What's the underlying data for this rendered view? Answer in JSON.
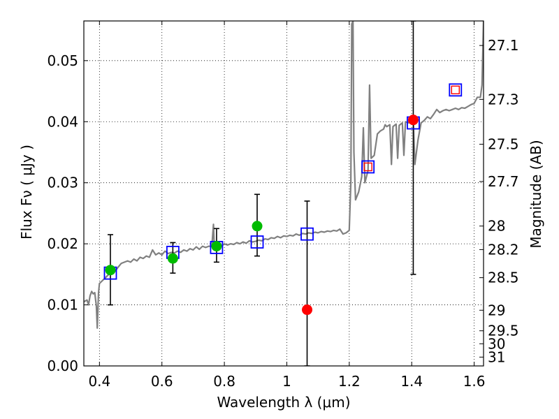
{
  "chart_data": {
    "type": "scatter",
    "title": "",
    "xlabel": "Wavelength  λ (μm)",
    "ylabel": "Flux  Fν  ( μJy )",
    "ylabel_right": "Magnitude (AB)",
    "xlim": [
      0.35,
      1.63
    ],
    "ylim": [
      0.0,
      0.0565
    ],
    "grid": true,
    "x_ticks": [
      0.4,
      0.6,
      0.8,
      1.0,
      1.2,
      1.4,
      1.6
    ],
    "x_tick_labels": [
      "0.4",
      "0.6",
      "0.8",
      "1",
      "1.2",
      "1.4",
      "1.6"
    ],
    "y_ticks": [
      0.0,
      0.01,
      0.02,
      0.03,
      0.04,
      0.05
    ],
    "y_tick_labels": [
      "0.00",
      "0.01",
      "0.02",
      "0.03",
      "0.04",
      "0.05"
    ],
    "right_ticks": [
      {
        "label": "27.1",
        "mag": 27.1
      },
      {
        "label": "27.3",
        "mag": 27.3
      },
      {
        "label": "27.5",
        "mag": 27.5
      },
      {
        "label": "27.7",
        "mag": 27.7
      },
      {
        "label": "28",
        "mag": 28.0
      },
      {
        "label": "28.2",
        "mag": 28.2
      },
      {
        "label": "28.5",
        "mag": 28.5
      },
      {
        "label": "29",
        "mag": 29.0
      },
      {
        "label": "29.5",
        "mag": 29.5
      },
      {
        "label": "30",
        "mag": 30.0
      },
      {
        "label": "31",
        "mag": 31.0
      }
    ],
    "series": [
      {
        "kind": "line",
        "color": "#808080",
        "points": [
          [
            0.35,
            0.0105
          ],
          [
            0.36,
            0.0108
          ],
          [
            0.365,
            0.01
          ],
          [
            0.37,
            0.0115
          ],
          [
            0.375,
            0.0122
          ],
          [
            0.38,
            0.0118
          ],
          [
            0.385,
            0.012
          ],
          [
            0.39,
            0.0098
          ],
          [
            0.393,
            0.0062
          ],
          [
            0.397,
            0.012
          ],
          [
            0.4,
            0.0135
          ],
          [
            0.41,
            0.014
          ],
          [
            0.42,
            0.0145
          ],
          [
            0.43,
            0.015
          ],
          [
            0.44,
            0.0152
          ],
          [
            0.45,
            0.0155
          ],
          [
            0.46,
            0.0162
          ],
          [
            0.47,
            0.0168
          ],
          [
            0.48,
            0.017
          ],
          [
            0.49,
            0.0172
          ],
          [
            0.5,
            0.017
          ],
          [
            0.51,
            0.0175
          ],
          [
            0.52,
            0.0172
          ],
          [
            0.53,
            0.0178
          ],
          [
            0.54,
            0.0176
          ],
          [
            0.55,
            0.018
          ],
          [
            0.56,
            0.0178
          ],
          [
            0.57,
            0.019
          ],
          [
            0.58,
            0.0182
          ],
          [
            0.59,
            0.0185
          ],
          [
            0.6,
            0.0182
          ],
          [
            0.61,
            0.0188
          ],
          [
            0.62,
            0.0184
          ],
          [
            0.63,
            0.0186
          ],
          [
            0.64,
            0.0185
          ],
          [
            0.65,
            0.0188
          ],
          [
            0.66,
            0.0186
          ],
          [
            0.67,
            0.019
          ],
          [
            0.68,
            0.0188
          ],
          [
            0.69,
            0.0192
          ],
          [
            0.7,
            0.019
          ],
          [
            0.71,
            0.0195
          ],
          [
            0.72,
            0.0191
          ],
          [
            0.73,
            0.0196
          ],
          [
            0.74,
            0.0194
          ],
          [
            0.75,
            0.0196
          ],
          [
            0.76,
            0.0196
          ],
          [
            0.765,
            0.0232
          ],
          [
            0.768,
            0.019
          ],
          [
            0.77,
            0.02
          ],
          [
            0.78,
            0.0198
          ],
          [
            0.79,
            0.0196
          ],
          [
            0.8,
            0.02
          ],
          [
            0.81,
            0.0198
          ],
          [
            0.82,
            0.02
          ],
          [
            0.83,
            0.0199
          ],
          [
            0.84,
            0.0202
          ],
          [
            0.85,
            0.02
          ],
          [
            0.86,
            0.0203
          ],
          [
            0.87,
            0.0201
          ],
          [
            0.88,
            0.0205
          ],
          [
            0.89,
            0.0203
          ],
          [
            0.9,
            0.0204
          ],
          [
            0.91,
            0.0206
          ],
          [
            0.92,
            0.0205
          ],
          [
            0.93,
            0.0208
          ],
          [
            0.94,
            0.0207
          ],
          [
            0.95,
            0.021
          ],
          [
            0.96,
            0.0209
          ],
          [
            0.97,
            0.0212
          ],
          [
            0.98,
            0.021
          ],
          [
            0.99,
            0.0213
          ],
          [
            1.0,
            0.0212
          ],
          [
            1.01,
            0.0214
          ],
          [
            1.02,
            0.0213
          ],
          [
            1.03,
            0.0216
          ],
          [
            1.04,
            0.0214
          ],
          [
            1.05,
            0.0217
          ],
          [
            1.06,
            0.0216
          ],
          [
            1.07,
            0.0218
          ],
          [
            1.08,
            0.0217
          ],
          [
            1.09,
            0.0219
          ],
          [
            1.1,
            0.0218
          ],
          [
            1.11,
            0.022
          ],
          [
            1.12,
            0.0219
          ],
          [
            1.13,
            0.0221
          ],
          [
            1.14,
            0.022
          ],
          [
            1.15,
            0.0222
          ],
          [
            1.16,
            0.0221
          ],
          [
            1.17,
            0.0224
          ],
          [
            1.18,
            0.0216
          ],
          [
            1.19,
            0.0218
          ],
          [
            1.2,
            0.0222
          ],
          [
            1.205,
            0.03
          ],
          [
            1.208,
            0.056
          ],
          [
            1.212,
            0.0565
          ],
          [
            1.215,
            0.035
          ],
          [
            1.22,
            0.0272
          ],
          [
            1.23,
            0.0285
          ],
          [
            1.24,
            0.031
          ],
          [
            1.245,
            0.039
          ],
          [
            1.25,
            0.03
          ],
          [
            1.26,
            0.032
          ],
          [
            1.265,
            0.046
          ],
          [
            1.27,
            0.034
          ],
          [
            1.28,
            0.0345
          ],
          [
            1.29,
            0.038
          ],
          [
            1.3,
            0.0385
          ],
          [
            1.31,
            0.0388
          ],
          [
            1.315,
            0.0395
          ],
          [
            1.32,
            0.0392
          ],
          [
            1.33,
            0.0395
          ],
          [
            1.335,
            0.033
          ],
          [
            1.34,
            0.0392
          ],
          [
            1.35,
            0.0396
          ],
          [
            1.355,
            0.034
          ],
          [
            1.36,
            0.0394
          ],
          [
            1.37,
            0.0398
          ],
          [
            1.375,
            0.0345
          ],
          [
            1.38,
            0.04
          ],
          [
            1.39,
            0.0398
          ],
          [
            1.4,
            0.04
          ],
          [
            1.405,
            0.0405
          ],
          [
            1.41,
            0.033
          ],
          [
            1.42,
            0.037
          ],
          [
            1.43,
            0.0398
          ],
          [
            1.44,
            0.0402
          ],
          [
            1.45,
            0.0408
          ],
          [
            1.46,
            0.0405
          ],
          [
            1.47,
            0.0412
          ],
          [
            1.48,
            0.042
          ],
          [
            1.49,
            0.0415
          ],
          [
            1.5,
            0.0418
          ],
          [
            1.51,
            0.042
          ],
          [
            1.52,
            0.0418
          ],
          [
            1.53,
            0.042
          ],
          [
            1.54,
            0.0422
          ],
          [
            1.55,
            0.042
          ],
          [
            1.56,
            0.0423
          ],
          [
            1.57,
            0.0422
          ],
          [
            1.58,
            0.0425
          ],
          [
            1.59,
            0.0428
          ],
          [
            1.6,
            0.043
          ],
          [
            1.61,
            0.044
          ],
          [
            1.62,
            0.044
          ],
          [
            1.625,
            0.046
          ],
          [
            1.63,
            0.0565
          ]
        ]
      },
      {
        "kind": "model-photometry",
        "marker": "open-square",
        "color": "#0000ff",
        "points": [
          [
            0.435,
            0.0152
          ],
          [
            0.635,
            0.0186
          ],
          [
            0.775,
            0.0194
          ],
          [
            0.905,
            0.0203
          ],
          [
            1.065,
            0.0216
          ],
          [
            1.26,
            0.0326
          ],
          [
            1.405,
            0.0398
          ],
          [
            1.54,
            0.0452
          ]
        ]
      },
      {
        "kind": "inner-square",
        "marker": "open-square",
        "color": "#ff0000",
        "points": [
          [
            1.26,
            0.0326
          ],
          [
            1.54,
            0.0452
          ]
        ]
      },
      {
        "kind": "hst-photometry",
        "marker": "circle",
        "color": "#00bb00",
        "points": [
          {
            "x": 0.435,
            "y": 0.0157,
            "yerr_low": 0.01,
            "yerr_high": 0.0215
          },
          {
            "x": 0.635,
            "y": 0.0176,
            "yerr_low": 0.0152,
            "yerr_high": 0.0202
          },
          {
            "x": 0.775,
            "y": 0.0196,
            "yerr_low": 0.017,
            "yerr_high": 0.0225
          },
          {
            "x": 0.905,
            "y": 0.0229,
            "yerr_low": 0.018,
            "yerr_high": 0.0281
          }
        ]
      },
      {
        "kind": "nir-photometry",
        "marker": "circle",
        "color": "#ff0000",
        "points": [
          {
            "x": 1.065,
            "y": 0.0092,
            "yerr_low": 0.0,
            "yerr_high": 0.027
          },
          {
            "x": 1.405,
            "y": 0.0403,
            "yerr_low": 0.015,
            "yerr_high": 0.0565
          }
        ]
      }
    ]
  }
}
